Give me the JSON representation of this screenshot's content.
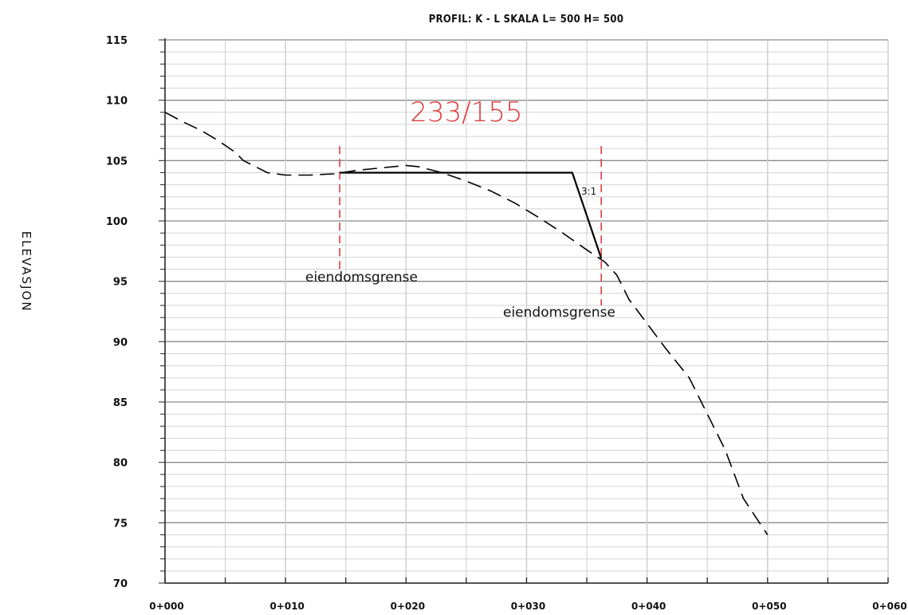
{
  "chart_data": {
    "type": "line",
    "title": "PROFIL: K - L  SKALA L= 500 H= 500",
    "ylabel": "ELEVASJON",
    "xlabel": "",
    "xlim": [
      0,
      60
    ],
    "ylim": [
      70,
      115
    ],
    "x_tick_values": [
      0,
      10,
      20,
      30,
      40,
      50,
      60
    ],
    "x_tick_labels": [
      "0+000",
      "0+010",
      "0+020",
      "0+030",
      "0+040",
      "0+050",
      "0+060"
    ],
    "y_tick_values": [
      70,
      75,
      80,
      85,
      90,
      95,
      100,
      105,
      110,
      115
    ],
    "y_tick_labels": [
      "70",
      "75",
      "80",
      "85",
      "90",
      "95",
      "100",
      "105",
      "110",
      "115"
    ],
    "grid": true,
    "series": [
      {
        "style": "dashed",
        "color": "#000000",
        "x": [
          0,
          1.5,
          3,
          4.5,
          5.8,
          6.5,
          8.5,
          10,
          12,
          14,
          16,
          18,
          20,
          21,
          23,
          25,
          27,
          29,
          31,
          33,
          35,
          36.5,
          37.5,
          38.5,
          40,
          41.5,
          43.5,
          45,
          46.5,
          48,
          49,
          50
        ],
        "y": [
          109,
          108.2,
          107.5,
          106.6,
          105.7,
          105.0,
          104.0,
          103.8,
          103.8,
          103.9,
          104.2,
          104.4,
          104.6,
          104.5,
          104.0,
          103.3,
          102.5,
          101.5,
          100.3,
          99.0,
          97.6,
          96.6,
          95.5,
          93.5,
          91.5,
          89.5,
          87,
          84,
          81,
          77,
          75.5,
          74
        ]
      },
      {
        "style": "solid",
        "color": "#000000",
        "x": [
          14.5,
          33.8,
          36.2
        ],
        "y": [
          104.0,
          104.0,
          96.9
        ]
      }
    ],
    "vertical_markers": [
      {
        "x": 14.5,
        "y_range": [
          96,
          106.2
        ],
        "color": "#e03c3c",
        "style": "dashed",
        "label": "eiendomsgrense"
      },
      {
        "x": 36.2,
        "y_range": [
          93,
          106.2
        ],
        "color": "#e03c3c",
        "style": "dashed",
        "label": "eiendomsgrense"
      }
    ],
    "annotations": [
      {
        "text": "233/155",
        "color": "#e03c3c"
      },
      {
        "text": "3:1"
      }
    ]
  }
}
